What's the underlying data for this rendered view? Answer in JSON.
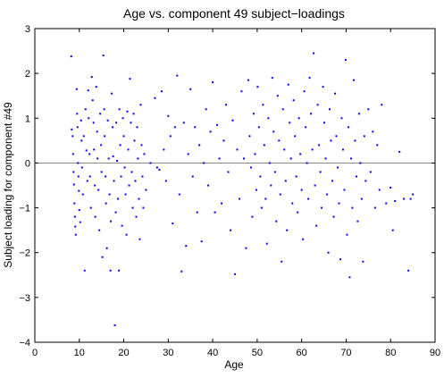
{
  "chart_data": {
    "type": "scatter",
    "title": "Age vs. component 49 subject−loadings",
    "xlabel": "Age",
    "ylabel": "Subject loading for component #49",
    "xlim": [
      0,
      90
    ],
    "ylim": [
      -4,
      3
    ],
    "xticks": [
      0,
      10,
      20,
      30,
      40,
      50,
      60,
      70,
      80,
      90
    ],
    "yticks": [
      -4,
      -3,
      -2,
      -1,
      0,
      1,
      2,
      3
    ],
    "grid": false,
    "legend": "none",
    "reference_line_y": 0,
    "marker_color": "#0000ff",
    "reference_line_color": "#808080",
    "points": [
      [
        8.2,
        2.38
      ],
      [
        8.3,
        0.75
      ],
      [
        8.5,
        0.6
      ],
      [
        8.6,
        0.2
      ],
      [
        8.7,
        -0.2
      ],
      [
        8.8,
        -0.48
      ],
      [
        8.9,
        -0.9
      ],
      [
        9.0,
        -1.2
      ],
      [
        9.1,
        -1.42
      ],
      [
        9.2,
        -1.6
      ],
      [
        9.4,
        1.65
      ],
      [
        9.5,
        1.1
      ],
      [
        9.6,
        0.8
      ],
      [
        9.7,
        0.0
      ],
      [
        9.8,
        -0.3
      ],
      [
        9.9,
        -0.62
      ],
      [
        10.0,
        -1.05
      ],
      [
        10.2,
        -1.32
      ],
      [
        10.4,
        0.95
      ],
      [
        10.5,
        0.5
      ],
      [
        10.6,
        -0.1
      ],
      [
        10.8,
        -0.7
      ],
      [
        11.0,
        0.6
      ],
      [
        11.2,
        -2.4
      ],
      [
        11.4,
        1.2
      ],
      [
        11.6,
        0.28
      ],
      [
        11.8,
        -0.4
      ],
      [
        12.0,
        1.62
      ],
      [
        12.1,
        1.0
      ],
      [
        12.3,
        0.2
      ],
      [
        12.4,
        -0.3
      ],
      [
        12.6,
        -1.0
      ],
      [
        12.8,
        1.92
      ],
      [
        13.0,
        1.4
      ],
      [
        13.2,
        0.9
      ],
      [
        13.3,
        0.3
      ],
      [
        13.5,
        -0.5
      ],
      [
        13.6,
        -1.2
      ],
      [
        13.8,
        1.7
      ],
      [
        14.0,
        0.7
      ],
      [
        14.1,
        0.1
      ],
      [
        14.3,
        -0.6
      ],
      [
        14.5,
        -1.5
      ],
      [
        14.7,
        1.1
      ],
      [
        14.9,
        0.4
      ],
      [
        15.0,
        -0.2
      ],
      [
        15.2,
        -2.1
      ],
      [
        15.4,
        2.4
      ],
      [
        15.6,
        1.2
      ],
      [
        15.7,
        0.6
      ],
      [
        15.9,
        -0.3
      ],
      [
        16.0,
        -0.9
      ],
      [
        16.2,
        -1.9
      ],
      [
        16.4,
        0.95
      ],
      [
        16.6,
        0.1
      ],
      [
        16.8,
        -0.7
      ],
      [
        17.0,
        -2.4
      ],
      [
        17.1,
        -1.3
      ],
      [
        17.3,
        1.55
      ],
      [
        17.5,
        0.8
      ],
      [
        17.6,
        0.15
      ],
      [
        17.8,
        -0.4
      ],
      [
        18.0,
        -3.62
      ],
      [
        18.2,
        -1.1
      ],
      [
        18.3,
        0.9
      ],
      [
        18.5,
        0.05
      ],
      [
        18.7,
        -0.8
      ],
      [
        18.9,
        -2.4
      ],
      [
        19.0,
        1.2
      ],
      [
        19.2,
        0.4
      ],
      [
        19.4,
        -0.3
      ],
      [
        19.6,
        -1.4
      ],
      [
        19.8,
        1.0
      ],
      [
        20.0,
        0.6
      ],
      [
        20.2,
        -0.1
      ],
      [
        20.4,
        -0.7
      ],
      [
        20.6,
        -1.6
      ],
      [
        20.8,
        1.15
      ],
      [
        21.0,
        0.3
      ],
      [
        21.2,
        -0.5
      ],
      [
        21.4,
        1.88
      ],
      [
        21.6,
        0.9
      ],
      [
        21.8,
        -0.2
      ],
      [
        22.0,
        -1.0
      ],
      [
        22.2,
        1.1
      ],
      [
        22.4,
        0.5
      ],
      [
        22.6,
        -0.4
      ],
      [
        22.8,
        -1.2
      ],
      [
        23.0,
        0.8
      ],
      [
        23.2,
        0.1
      ],
      [
        23.4,
        -0.8
      ],
      [
        23.6,
        -1.7
      ],
      [
        23.8,
        1.3
      ],
      [
        24.0,
        0.4
      ],
      [
        24.2,
        -0.3
      ],
      [
        24.4,
        -1.0
      ],
      [
        24.6,
        0.2
      ],
      [
        25.0,
        -0.6
      ],
      [
        26.0,
        0.0
      ],
      [
        27.0,
        1.45
      ],
      [
        27.5,
        -0.1
      ],
      [
        28.0,
        -0.15
      ],
      [
        28.5,
        1.6
      ],
      [
        29.0,
        0.3
      ],
      [
        29.5,
        -0.4
      ],
      [
        30.0,
        1.05
      ],
      [
        30.5,
        0.6
      ],
      [
        31.0,
        -1.35
      ],
      [
        31.5,
        0.8
      ],
      [
        32.0,
        1.95
      ],
      [
        32.5,
        -0.7
      ],
      [
        33.0,
        -2.42
      ],
      [
        33.5,
        0.9
      ],
      [
        34.0,
        -1.85
      ],
      [
        34.5,
        0.2
      ],
      [
        35.0,
        1.65
      ],
      [
        35.5,
        -0.3
      ],
      [
        36.0,
        0.8
      ],
      [
        36.5,
        -1.1
      ],
      [
        37.0,
        0.4
      ],
      [
        37.5,
        -1.75
      ],
      [
        38.0,
        0.0
      ],
      [
        38.5,
        1.2
      ],
      [
        39.0,
        -0.5
      ],
      [
        39.5,
        0.7
      ],
      [
        40.0,
        1.8
      ],
      [
        40.5,
        -1.1
      ],
      [
        41.0,
        0.85
      ],
      [
        41.5,
        0.1
      ],
      [
        42.0,
        -0.9
      ],
      [
        42.5,
        0.5
      ],
      [
        43.0,
        1.3
      ],
      [
        43.5,
        -0.2
      ],
      [
        44.0,
        -1.5
      ],
      [
        44.5,
        0.95
      ],
      [
        45.0,
        -2.48
      ],
      [
        45.5,
        0.3
      ],
      [
        46.0,
        -0.8
      ],
      [
        46.5,
        1.6
      ],
      [
        47.0,
        0.1
      ],
      [
        47.5,
        -1.9
      ],
      [
        48.0,
        1.85
      ],
      [
        48.3,
        0.6
      ],
      [
        48.6,
        -0.1
      ],
      [
        48.9,
        -1.2
      ],
      [
        49.2,
        1.1
      ],
      [
        49.5,
        0.2
      ],
      [
        49.8,
        -0.6
      ],
      [
        50.1,
        1.7
      ],
      [
        50.4,
        0.8
      ],
      [
        50.7,
        -0.3
      ],
      [
        51.0,
        -1.0
      ],
      [
        51.3,
        1.3
      ],
      [
        51.6,
        0.4
      ],
      [
        51.9,
        -0.8
      ],
      [
        52.2,
        -1.8
      ],
      [
        52.5,
        1.0
      ],
      [
        52.8,
        0.0
      ],
      [
        53.1,
        -0.5
      ],
      [
        53.4,
        1.9
      ],
      [
        53.7,
        0.7
      ],
      [
        54.0,
        -0.2
      ],
      [
        54.3,
        -1.3
      ],
      [
        54.6,
        1.5
      ],
      [
        54.9,
        0.5
      ],
      [
        55.2,
        -0.7
      ],
      [
        55.5,
        -2.2
      ],
      [
        55.8,
        1.2
      ],
      [
        56.1,
        0.3
      ],
      [
        56.4,
        -0.4
      ],
      [
        56.7,
        -1.5
      ],
      [
        57.0,
        1.75
      ],
      [
        57.3,
        0.9
      ],
      [
        57.6,
        0.1
      ],
      [
        57.9,
        -0.9
      ],
      [
        58.2,
        1.4
      ],
      [
        58.5,
        0.6
      ],
      [
        58.8,
        -0.3
      ],
      [
        59.1,
        -1.1
      ],
      [
        59.4,
        1.0
      ],
      [
        59.7,
        0.2
      ],
      [
        60.0,
        -0.6
      ],
      [
        60.3,
        -1.7
      ],
      [
        60.6,
        1.6
      ],
      [
        60.9,
        0.8
      ],
      [
        61.2,
        0.0
      ],
      [
        61.5,
        -0.8
      ],
      [
        61.8,
        1.9
      ],
      [
        62.1,
        1.1
      ],
      [
        62.4,
        0.3
      ],
      [
        62.7,
        2.45
      ],
      [
        63.0,
        -0.5
      ],
      [
        63.3,
        -1.4
      ],
      [
        63.6,
        1.3
      ],
      [
        63.9,
        0.4
      ],
      [
        64.2,
        -0.2
      ],
      [
        64.5,
        -1.0
      ],
      [
        64.8,
        1.7
      ],
      [
        65.1,
        0.9
      ],
      [
        65.4,
        0.1
      ],
      [
        65.7,
        -0.7
      ],
      [
        66.0,
        -2.0
      ],
      [
        66.3,
        1.2
      ],
      [
        66.6,
        0.5
      ],
      [
        66.9,
        -0.4
      ],
      [
        67.2,
        -1.2
      ],
      [
        67.5,
        1.55
      ],
      [
        67.8,
        0.6
      ],
      [
        68.1,
        -0.1
      ],
      [
        68.4,
        -0.9
      ],
      [
        68.7,
        -2.15
      ],
      [
        69.0,
        1.0
      ],
      [
        69.3,
        0.3
      ],
      [
        69.6,
        -0.6
      ],
      [
        69.9,
        2.3
      ],
      [
        70.2,
        -1.6
      ],
      [
        70.5,
        0.8
      ],
      [
        70.8,
        -2.55
      ],
      [
        71.1,
        0.1
      ],
      [
        71.4,
        -1.0
      ],
      [
        71.7,
        1.85
      ],
      [
        72.0,
        0.5
      ],
      [
        72.3,
        -0.3
      ],
      [
        72.6,
        -1.3
      ],
      [
        72.9,
        1.1
      ],
      [
        73.2,
        0.0
      ],
      [
        73.5,
        -0.8
      ],
      [
        73.8,
        -2.2
      ],
      [
        74.1,
        0.6
      ],
      [
        74.4,
        -0.4
      ],
      [
        75.0,
        1.2
      ],
      [
        75.5,
        -0.2
      ],
      [
        76.0,
        0.7
      ],
      [
        76.5,
        -1.0
      ],
      [
        77.0,
        0.4
      ],
      [
        77.5,
        -0.6
      ],
      [
        78.0,
        1.3
      ],
      [
        79.0,
        -0.9
      ],
      [
        80.0,
        -0.55
      ],
      [
        80.5,
        -1.5
      ],
      [
        81.0,
        -0.85
      ],
      [
        82.0,
        0.25
      ],
      [
        83.0,
        -0.8
      ],
      [
        84.0,
        -2.4
      ],
      [
        84.5,
        -0.8
      ],
      [
        85.0,
        -0.7
      ]
    ]
  }
}
